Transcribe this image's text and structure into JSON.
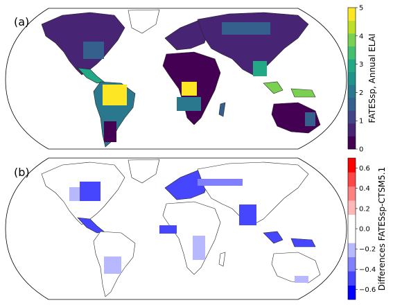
{
  "panels": [
    {
      "label": "(a)",
      "colorbar": {
        "title": "FATESsp, Annual ELAI",
        "ticks": [
          "0",
          "1",
          "2",
          "3",
          "4",
          "5"
        ],
        "range": [
          0,
          5
        ],
        "colors": [
          "#440154",
          "#482475",
          "#414487",
          "#355f8d",
          "#2a788e",
          "#21918c",
          "#22a884",
          "#44bf70",
          "#7ad151",
          "#bddf26",
          "#fde725"
        ]
      }
    },
    {
      "label": "(b)",
      "colorbar": {
        "title": "Differences FATESsp-CTSM5.1",
        "ticks": [
          "−0.6",
          "−0.4",
          "−0.2",
          "0.0",
          "0.2",
          "0.4",
          "0.6"
        ],
        "range": [
          -0.7,
          0.7
        ],
        "colors": [
          "#0000ff",
          "#4646ff",
          "#8080ff",
          "#b8b8ff",
          "#ffffff",
          "#ffffff",
          "#ffb8b8",
          "#ff8080",
          "#ff4646",
          "#ff0000"
        ]
      }
    }
  ]
}
